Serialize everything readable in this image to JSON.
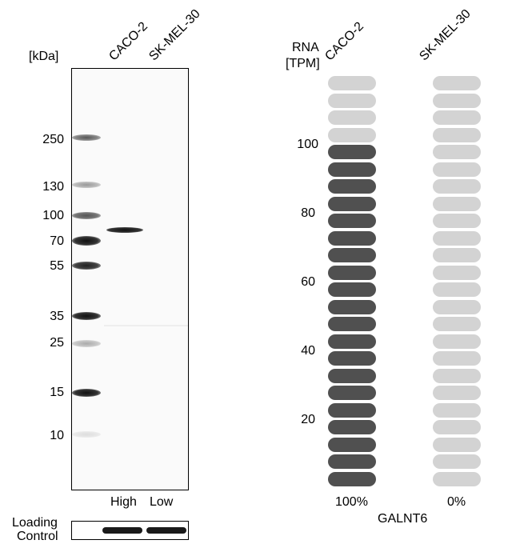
{
  "western_blot": {
    "unit_label": "[kDa]",
    "lanes": [
      "CACO-2",
      "SK-MEL-30"
    ],
    "markers": [
      "250",
      "130",
      "100",
      "70",
      "55",
      "35",
      "25",
      "15",
      "10"
    ],
    "lane_levels": [
      "High",
      "Low"
    ],
    "loading_control_label_line1": "Loading",
    "loading_control_label_line2": "Control"
  },
  "rna": {
    "axis_title_line1": "RNA",
    "axis_title_line2": "[TPM]",
    "cell_lines": [
      "CACO-2",
      "SK-MEL-30"
    ],
    "axis_ticks": [
      "100",
      "80",
      "60",
      "40",
      "20"
    ],
    "percentages": [
      "100%",
      "0%"
    ],
    "gene": "GALNT6",
    "total_segments": 24,
    "filled_segments": [
      20,
      0
    ],
    "colors": {
      "filled": "#505050",
      "empty": "#d3d3d3"
    }
  }
}
